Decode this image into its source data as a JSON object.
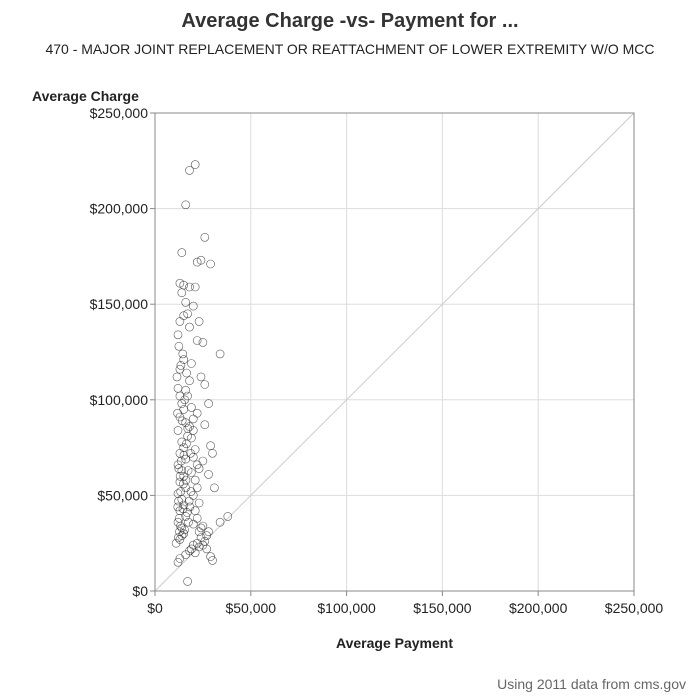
{
  "chart_data": {
    "type": "scatter",
    "title": "Average Charge -vs- Payment for ...",
    "subtitle": "470 - MAJOR JOINT REPLACEMENT OR REATTACHMENT OF LOWER EXTREMITY W/O MCC",
    "xlabel": "Average Payment",
    "ylabel": "Average Charge",
    "xlim": [
      0,
      250000
    ],
    "ylim": [
      0,
      250000
    ],
    "x_ticks": [
      "$0",
      "$50,000",
      "$100,000",
      "$150,000",
      "$200,000",
      "$250,000"
    ],
    "y_ticks": [
      "$0",
      "$50,000",
      "$100,000",
      "$150,000",
      "$200,000",
      "$250,000"
    ],
    "x_tick_values": [
      0,
      50000,
      100000,
      150000,
      200000,
      250000
    ],
    "y_tick_values": [
      0,
      50000,
      100000,
      150000,
      200000,
      250000
    ],
    "grid": true,
    "reference_line": {
      "from": [
        0,
        0
      ],
      "to": [
        250000,
        250000
      ]
    },
    "marker": "open-circle",
    "colors": {
      "marker": "#222222",
      "grid": "#dddddd",
      "reference": "#cccccc",
      "axis": "#888888"
    },
    "points": [
      [
        21000,
        223000
      ],
      [
        18000,
        220000
      ],
      [
        16000,
        202000
      ],
      [
        26000,
        185000
      ],
      [
        14000,
        177000
      ],
      [
        24000,
        173000
      ],
      [
        29000,
        171000
      ],
      [
        22000,
        172000
      ],
      [
        13000,
        161000
      ],
      [
        15000,
        160000
      ],
      [
        18000,
        159000
      ],
      [
        21000,
        159000
      ],
      [
        14000,
        156000
      ],
      [
        16000,
        151000
      ],
      [
        20000,
        149000
      ],
      [
        17000,
        145000
      ],
      [
        15000,
        144000
      ],
      [
        13000,
        141000
      ],
      [
        23000,
        141000
      ],
      [
        18000,
        138000
      ],
      [
        12000,
        134000
      ],
      [
        22000,
        131000
      ],
      [
        25000,
        130000
      ],
      [
        34000,
        124000
      ],
      [
        15000,
        121000
      ],
      [
        19000,
        119000
      ],
      [
        13000,
        116000
      ],
      [
        24000,
        112000
      ],
      [
        26000,
        108000
      ],
      [
        16000,
        105000
      ],
      [
        28000,
        98000
      ],
      [
        22000,
        93000
      ],
      [
        26000,
        87000
      ],
      [
        20000,
        84000
      ],
      [
        29000,
        76000
      ],
      [
        30000,
        72000
      ],
      [
        25000,
        68000
      ],
      [
        23000,
        64000
      ],
      [
        28000,
        61000
      ],
      [
        31000,
        54000
      ],
      [
        38000,
        39000
      ],
      [
        34000,
        36000
      ],
      [
        17000,
        5000
      ],
      [
        29000,
        18000
      ],
      [
        30000,
        16000
      ],
      [
        27000,
        22000
      ],
      [
        26000,
        26000
      ],
      [
        24000,
        28000
      ],
      [
        22000,
        25000
      ],
      [
        20000,
        24000
      ],
      [
        18000,
        21000
      ],
      [
        16000,
        19000
      ],
      [
        13000,
        17000
      ],
      [
        12000,
        15000
      ],
      [
        19000,
        22000
      ],
      [
        21000,
        20000
      ],
      [
        23000,
        23000
      ],
      [
        25000,
        24000
      ],
      [
        27000,
        29000
      ],
      [
        28000,
        31000
      ],
      [
        14000,
        98000
      ],
      [
        15000,
        95000
      ],
      [
        13000,
        91000
      ],
      [
        16000,
        88000
      ],
      [
        12000,
        84000
      ],
      [
        17000,
        81000
      ],
      [
        14000,
        78000
      ],
      [
        15000,
        75000
      ],
      [
        13000,
        72000
      ],
      [
        16000,
        69000
      ],
      [
        12000,
        66000
      ],
      [
        14000,
        63000
      ],
      [
        15000,
        60000
      ],
      [
        13000,
        57000
      ],
      [
        16000,
        54000
      ],
      [
        12000,
        51000
      ],
      [
        14000,
        48000
      ],
      [
        15000,
        45000
      ],
      [
        13000,
        42000
      ],
      [
        16000,
        39000
      ],
      [
        12000,
        36000
      ],
      [
        14000,
        33000
      ],
      [
        15000,
        30000
      ],
      [
        13000,
        27000
      ],
      [
        11000,
        25000
      ],
      [
        18000,
        110000
      ],
      [
        17000,
        102000
      ],
      [
        19000,
        96000
      ],
      [
        20000,
        90000
      ],
      [
        18000,
        86000
      ],
      [
        19000,
        80000
      ],
      [
        21000,
        74000
      ],
      [
        20000,
        70000
      ],
      [
        22000,
        66000
      ],
      [
        19000,
        62000
      ],
      [
        21000,
        58000
      ],
      [
        22000,
        54000
      ],
      [
        20000,
        50000
      ],
      [
        23000,
        46000
      ],
      [
        21000,
        42000
      ],
      [
        22000,
        38000
      ],
      [
        20000,
        35000
      ],
      [
        24000,
        33000
      ],
      [
        23000,
        31000
      ],
      [
        25000,
        34000
      ],
      [
        12500,
        128000
      ],
      [
        14500,
        124000
      ],
      [
        13500,
        118000
      ],
      [
        11500,
        112000
      ],
      [
        16500,
        114000
      ],
      [
        12000,
        106000
      ],
      [
        13000,
        102000
      ],
      [
        15500,
        100000
      ],
      [
        11800,
        93000
      ],
      [
        14200,
        89000
      ],
      [
        12300,
        47000
      ],
      [
        13400,
        52000
      ],
      [
        14600,
        43000
      ],
      [
        12700,
        38000
      ],
      [
        11900,
        44000
      ],
      [
        13100,
        60000
      ],
      [
        14800,
        56000
      ],
      [
        12400,
        64000
      ],
      [
        13700,
        68000
      ],
      [
        15100,
        71000
      ],
      [
        12800,
        31000
      ],
      [
        13300,
        34000
      ],
      [
        14100,
        29000
      ],
      [
        12200,
        28000
      ],
      [
        15400,
        32000
      ],
      [
        17500,
        36000
      ],
      [
        16800,
        41000
      ],
      [
        17800,
        47000
      ],
      [
        16200,
        58000
      ],
      [
        17300,
        63000
      ],
      [
        18200,
        44000
      ],
      [
        18800,
        52000
      ],
      [
        16400,
        77000
      ],
      [
        17100,
        85000
      ],
      [
        18600,
        72000
      ]
    ]
  },
  "footnote": "Using 2011 data from cms.gov"
}
